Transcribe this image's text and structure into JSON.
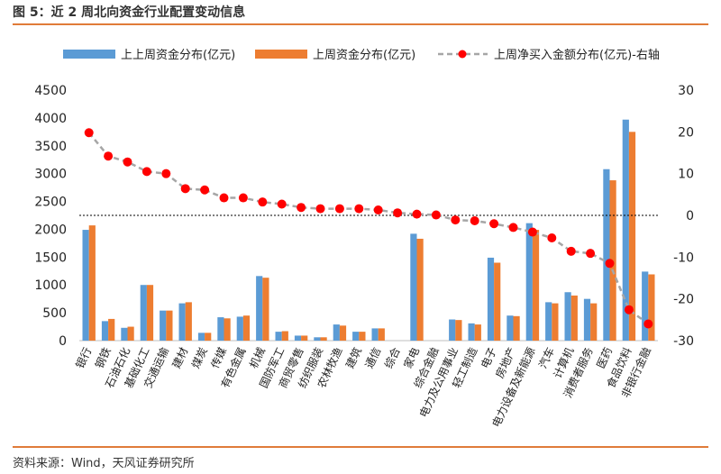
{
  "header": {
    "title": "图 5：近 2 周北向资金行业配置变动信息"
  },
  "footer": {
    "source": "资料来源：Wind，天风证券研究所"
  },
  "colors": {
    "series1": "#5b9bd5",
    "series2": "#ed7d31",
    "line": "#a6a6a6",
    "marker": "#ff0000",
    "accent": "#e07b39"
  },
  "chart_data": {
    "type": "bar",
    "title": "近 2 周北向资金行业配置变动信息",
    "categories": [
      "银行",
      "钢铁",
      "石油石化",
      "基础化工",
      "交通运输",
      "建材",
      "煤炭",
      "传媒",
      "有色金属",
      "机械",
      "国防军工",
      "商贸零售",
      "纺织服装",
      "农林牧渔",
      "建筑",
      "通信",
      "综合",
      "家电",
      "综合金融",
      "电力及公用事业",
      "轻工制造",
      "电子",
      "房地产",
      "电力设备及新能源",
      "汽车",
      "计算机",
      "消费者服务",
      "医药",
      "食品饮料",
      "非银行金融"
    ],
    "series": [
      {
        "name": "上上周资金分布(亿元)",
        "axis": "left",
        "values": [
          1990,
          350,
          230,
          1000,
          540,
          670,
          140,
          420,
          430,
          1160,
          160,
          90,
          60,
          290,
          160,
          220,
          0,
          1920,
          0,
          380,
          310,
          1490,
          450,
          2110,
          690,
          870,
          750,
          3080,
          3970,
          1240
        ]
      },
      {
        "name": "上周资金分布(亿元)",
        "axis": "left",
        "values": [
          2070,
          390,
          250,
          1000,
          540,
          690,
          140,
          400,
          450,
          1130,
          170,
          90,
          60,
          270,
          160,
          220,
          0,
          1830,
          0,
          370,
          290,
          1400,
          440,
          1990,
          670,
          810,
          670,
          2880,
          3750,
          1190
        ]
      },
      {
        "name": "上周净买入金额分布(亿元)-右轴",
        "axis": "right",
        "style": "dashed-line-with-markers",
        "values": [
          19.8,
          14.2,
          12.8,
          10.5,
          10.0,
          6.4,
          6.1,
          4.2,
          4.2,
          3.2,
          2.7,
          1.9,
          1.6,
          1.6,
          1.6,
          1.3,
          0.6,
          0.3,
          0.1,
          -1.1,
          -1.3,
          -2.0,
          -2.9,
          -4.0,
          -5.4,
          -8.6,
          -9.1,
          -11.5,
          -22.6,
          -26.0
        ]
      }
    ],
    "y_left": {
      "range": [
        0,
        4500
      ],
      "ticks": [
        "0",
        "500",
        "1000",
        "1500",
        "2000",
        "2500",
        "3000",
        "3500",
        "4000",
        "4500"
      ]
    },
    "y_right": {
      "range": [
        -30,
        30
      ],
      "ticks": [
        "-30",
        "-20",
        "-10",
        "0",
        "10",
        "20",
        "30"
      ]
    },
    "zero_reference_line": "dotted black at right-axis 0",
    "legend": {
      "position": "top"
    }
  }
}
